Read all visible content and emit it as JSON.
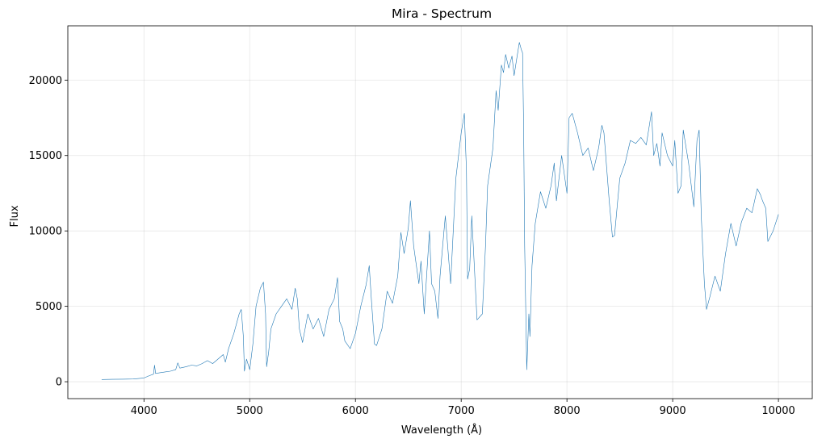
{
  "chart_data": {
    "type": "line",
    "title": "Mira - Spectrum",
    "xlabel": "Wavelength (Å)",
    "ylabel": "Flux",
    "xlim": [
      3280,
      10320
    ],
    "ylim": [
      -1120,
      23600
    ],
    "xticks": [
      4000,
      5000,
      6000,
      7000,
      8000,
      9000,
      10000
    ],
    "yticks": [
      0,
      5000,
      10000,
      15000,
      20000
    ],
    "grid": true,
    "series": [
      {
        "color": "#1f77b4",
        "x": [
          3600,
          3700,
          3800,
          3900,
          3950,
          4000,
          4050,
          4090,
          4100,
          4110,
          4150,
          4200,
          4250,
          4300,
          4320,
          4340,
          4400,
          4450,
          4500,
          4550,
          4600,
          4650,
          4700,
          4750,
          4770,
          4800,
          4850,
          4900,
          4920,
          4940,
          4950,
          4970,
          5000,
          5030,
          5060,
          5100,
          5130,
          5150,
          5160,
          5180,
          5200,
          5250,
          5300,
          5350,
          5400,
          5430,
          5450,
          5470,
          5500,
          5550,
          5600,
          5650,
          5700,
          5750,
          5800,
          5830,
          5850,
          5880,
          5900,
          5950,
          6000,
          6050,
          6100,
          6130,
          6150,
          6180,
          6200,
          6250,
          6300,
          6350,
          6400,
          6430,
          6460,
          6500,
          6520,
          6550,
          6600,
          6620,
          6650,
          6700,
          6720,
          6750,
          6780,
          6800,
          6850,
          6900,
          6950,
          7000,
          7030,
          7050,
          7060,
          7080,
          7100,
          7150,
          7200,
          7230,
          7250,
          7300,
          7330,
          7350,
          7380,
          7400,
          7420,
          7450,
          7480,
          7500,
          7520,
          7550,
          7570,
          7580,
          7590,
          7600,
          7620,
          7640,
          7650,
          7670,
          7700,
          7750,
          7800,
          7850,
          7880,
          7900,
          7950,
          8000,
          8020,
          8050,
          8100,
          8150,
          8200,
          8250,
          8300,
          8330,
          8350,
          8400,
          8430,
          8450,
          8480,
          8500,
          8550,
          8600,
          8650,
          8700,
          8750,
          8800,
          8820,
          8850,
          8880,
          8900,
          8950,
          9000,
          9020,
          9050,
          9080,
          9100,
          9150,
          9200,
          9230,
          9250,
          9270,
          9300,
          9320,
          9350,
          9400,
          9450,
          9500,
          9550,
          9600,
          9650,
          9700,
          9750,
          9800,
          9830,
          9850,
          9880,
          9900,
          9950,
          10000
        ],
        "y": [
          150,
          160,
          170,
          180,
          210,
          250,
          400,
          500,
          1100,
          550,
          600,
          650,
          700,
          800,
          1250,
          900,
          1000,
          1100,
          1050,
          1200,
          1400,
          1200,
          1500,
          1800,
          1300,
          2200,
          3200,
          4500,
          4800,
          3000,
          700,
          1500,
          800,
          2500,
          5000,
          6200,
          6600,
          4500,
          1000,
          2000,
          3500,
          4500,
          5000,
          5500,
          4800,
          6200,
          5500,
          3500,
          2600,
          4500,
          3500,
          4200,
          3000,
          4800,
          5500,
          6900,
          4000,
          3500,
          2700,
          2200,
          3200,
          5000,
          6400,
          7700,
          5500,
          2500,
          2400,
          3500,
          6000,
          5200,
          7000,
          9900,
          8500,
          10200,
          12000,
          9000,
          6500,
          8000,
          4500,
          10000,
          6500,
          6000,
          4200,
          7000,
          11000,
          6500,
          13500,
          16500,
          17800,
          14000,
          6800,
          7500,
          11000,
          4100,
          4500,
          9000,
          13000,
          15500,
          19300,
          18000,
          21000,
          20500,
          21700,
          20800,
          21600,
          20300,
          21200,
          22500,
          22000,
          21800,
          17000,
          9000,
          800,
          4500,
          3000,
          7700,
          10500,
          12600,
          11500,
          13000,
          14500,
          12000,
          15000,
          12500,
          17500,
          17800,
          16500,
          15000,
          15500,
          14000,
          15500,
          17000,
          16500,
          12000,
          9600,
          9700,
          12000,
          13500,
          14500,
          16000,
          15800,
          16200,
          15700,
          17900,
          15000,
          15800,
          14300,
          16500,
          15000,
          14300,
          16000,
          12500,
          13000,
          16700,
          14500,
          11600,
          16000,
          16700,
          11000,
          6500,
          4800,
          5600,
          7000,
          6000,
          8500,
          10500,
          9000,
          10600,
          11500,
          11200,
          12800,
          12400,
          12000,
          11500,
          9300,
          10000,
          11100
        ]
      }
    ]
  }
}
